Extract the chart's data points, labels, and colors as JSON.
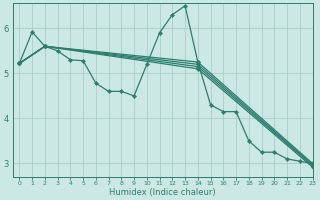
{
  "xlabel": "Humidex (Indice chaleur)",
  "bg_color": "#cce8e4",
  "grid_color": "#aaccc8",
  "line_color": "#2d7d6e",
  "xlim": [
    -0.5,
    23
  ],
  "ylim": [
    2.7,
    6.55
  ],
  "yticks": [
    3,
    4,
    5,
    6
  ],
  "xticks": [
    0,
    1,
    2,
    3,
    4,
    5,
    6,
    7,
    8,
    9,
    10,
    11,
    12,
    13,
    14,
    15,
    16,
    17,
    18,
    19,
    20,
    21,
    22,
    23
  ],
  "series": [
    {
      "x": [
        0,
        1,
        2,
        3,
        4,
        5,
        6,
        7,
        8,
        9,
        10,
        11,
        12,
        13,
        14,
        15,
        16,
        17,
        18,
        19,
        20,
        21,
        22,
        23
      ],
      "y": [
        5.22,
        5.92,
        5.6,
        5.5,
        5.3,
        5.28,
        4.78,
        4.6,
        4.6,
        4.5,
        5.2,
        5.9,
        6.3,
        6.5,
        5.25,
        4.3,
        4.15,
        4.15,
        3.5,
        3.25,
        3.25,
        3.1,
        3.05,
        3.0
      ]
    },
    {
      "x": [
        0,
        2,
        14,
        23
      ],
      "y": [
        5.22,
        5.6,
        5.25,
        3.0
      ]
    },
    {
      "x": [
        0,
        2,
        14,
        23
      ],
      "y": [
        5.22,
        5.6,
        5.2,
        2.97
      ]
    },
    {
      "x": [
        0,
        2,
        14,
        23
      ],
      "y": [
        5.22,
        5.6,
        5.15,
        2.95
      ]
    },
    {
      "x": [
        0,
        2,
        14,
        23
      ],
      "y": [
        5.22,
        5.6,
        5.1,
        2.92
      ]
    }
  ]
}
